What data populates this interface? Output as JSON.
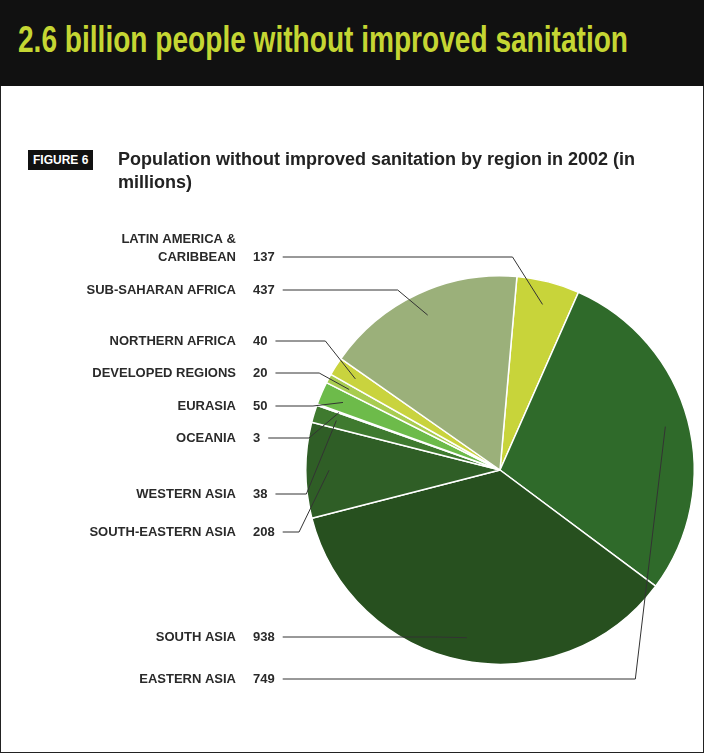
{
  "chart_data": {
    "type": "pie",
    "title": "2.6 billion people without improved sanitation",
    "figure_label": "FIGURE 6",
    "subtitle": "Population without improved sanitation by region in 2002 (in millions)",
    "categories": [
      "LATIN AMERICA & CARIBBEAN",
      "EASTERN ASIA",
      "SOUTH ASIA",
      "SOUTH-EASTERN ASIA",
      "WESTERN ASIA",
      "OCEANIA",
      "EURASIA",
      "DEVELOPED REGIONS",
      "NORTHERN AFRICA",
      "SUB-SAHARAN AFRICA"
    ],
    "values": [
      137,
      749,
      938,
      208,
      38,
      3,
      50,
      20,
      40,
      437
    ],
    "colors": [
      "#c8d43a",
      "#2f6a2a",
      "#27501f",
      "#2f5e26",
      "#3f7a2f",
      "#3f8f35",
      "#6dbb4a",
      "#a8cc50",
      "#c9d33e",
      "#9bb07a"
    ],
    "data_labels": true,
    "legend": "none"
  }
}
